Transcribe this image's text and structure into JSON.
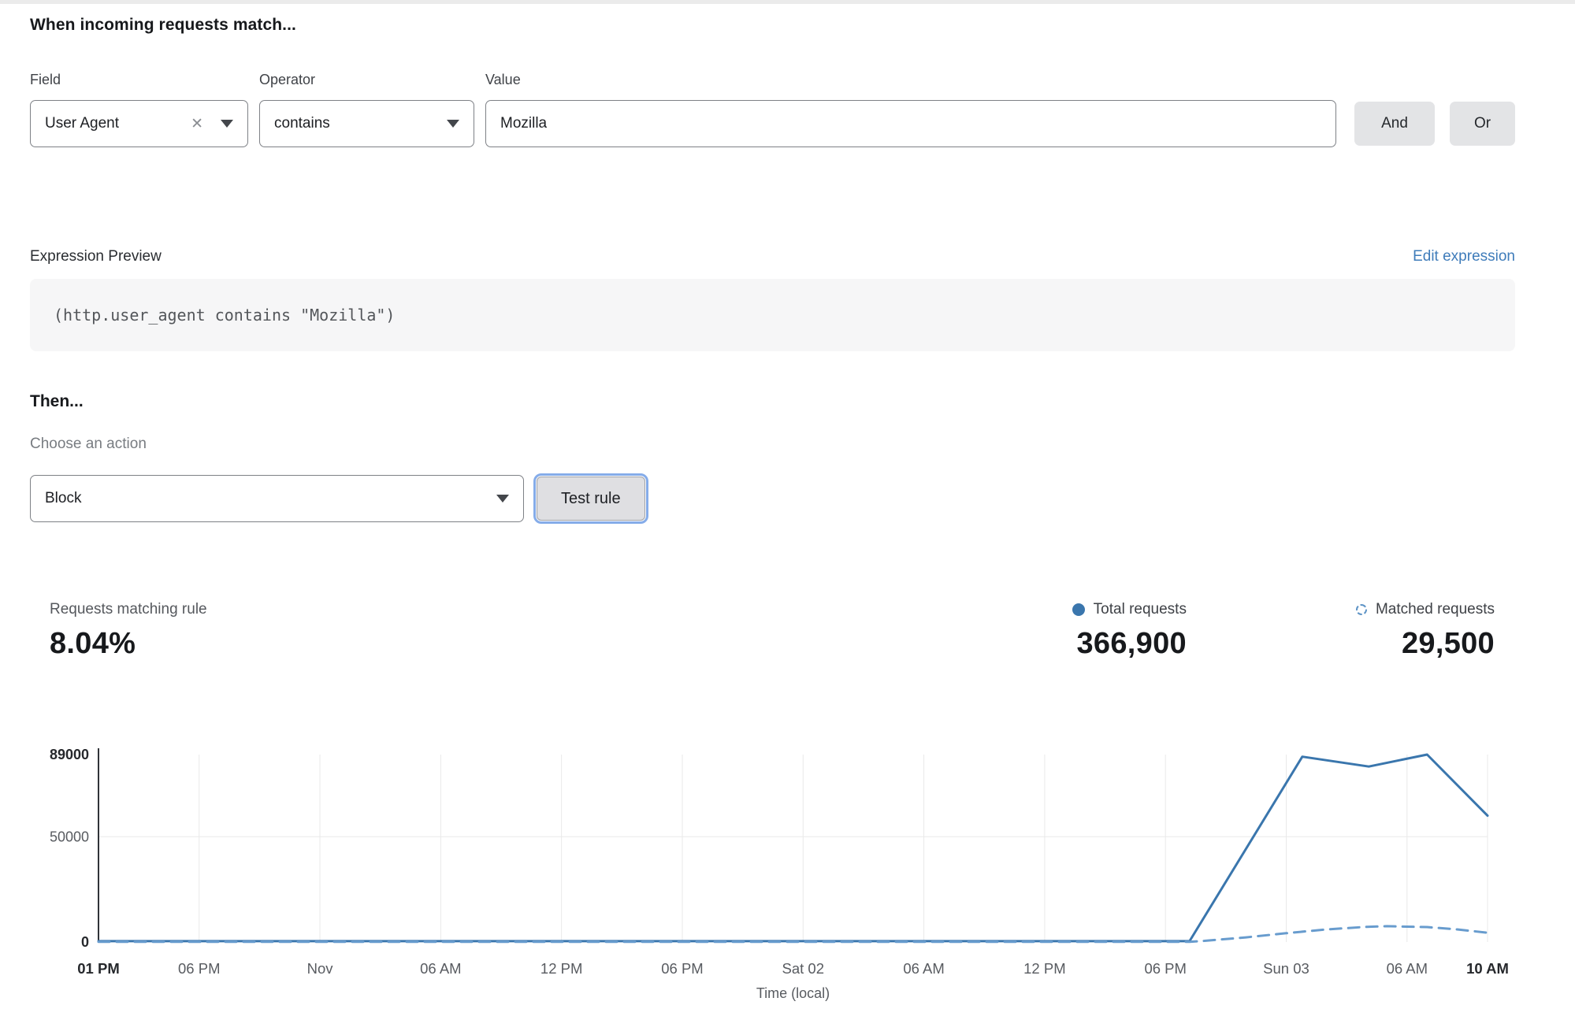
{
  "page": {
    "title": "When incoming requests match..."
  },
  "rule_builder": {
    "field": {
      "label": "Field",
      "selected": "User Agent"
    },
    "operator": {
      "label": "Operator",
      "selected": "contains"
    },
    "value": {
      "label": "Value",
      "value": "Mozilla"
    },
    "and_button": "And",
    "or_button": "Or"
  },
  "expression": {
    "label": "Expression Preview",
    "edit_link": "Edit expression",
    "code": "(http.user_agent contains \"Mozilla\")"
  },
  "action": {
    "title": "Then...",
    "label": "Choose an action",
    "selected": "Block",
    "test_button": "Test rule"
  },
  "stats": {
    "matching_rule": {
      "label": "Requests matching rule",
      "value": "8.04%"
    },
    "total_requests": {
      "label": "Total requests",
      "value": "366,900",
      "color": "#3a76ad"
    },
    "matched_requests": {
      "label": "Matched requests",
      "value": "29,500",
      "color": "#5e94c6"
    }
  },
  "chart_data": {
    "type": "line",
    "title": "",
    "xlabel": "Time (local)",
    "ylabel": "",
    "x_unit": "hours since Fri 01 PM",
    "xlim": [
      0,
      69
    ],
    "ylim": [
      0,
      89000
    ],
    "grid_vertical": true,
    "grid_horizontal_values": [
      50000
    ],
    "legend_position": "above-right",
    "colors": {
      "grid": "#e9e9e9",
      "axis": "#303338",
      "tick": "#585b60",
      "tick_bold": "#26282c"
    },
    "yticks": [
      {
        "value": 89000,
        "label": "89000",
        "bold": true
      },
      {
        "value": 50000,
        "label": "50000",
        "bold": false
      },
      {
        "value": 0,
        "label": "0",
        "bold": true
      }
    ],
    "xticks": [
      {
        "hour": 0,
        "label": "01 PM",
        "bold": true
      },
      {
        "hour": 5,
        "label": "06 PM",
        "bold": false
      },
      {
        "hour": 11,
        "label": "Nov",
        "bold": false
      },
      {
        "hour": 17,
        "label": "06 AM",
        "bold": false
      },
      {
        "hour": 23,
        "label": "12 PM",
        "bold": false
      },
      {
        "hour": 29,
        "label": "06 PM",
        "bold": false
      },
      {
        "hour": 35,
        "label": "Sat 02",
        "bold": false
      },
      {
        "hour": 41,
        "label": "06 AM",
        "bold": false
      },
      {
        "hour": 47,
        "label": "12 PM",
        "bold": false
      },
      {
        "hour": 53,
        "label": "06 PM",
        "bold": false
      },
      {
        "hour": 59,
        "label": "Sun 03",
        "bold": false
      },
      {
        "hour": 65,
        "label": "06 AM",
        "bold": false
      },
      {
        "hour": 69,
        "label": "10 AM",
        "bold": true
      }
    ],
    "series": [
      {
        "name": "Total requests",
        "style": "solid",
        "color": "#3a76ad",
        "points": [
          [
            0,
            400
          ],
          [
            6,
            400
          ],
          [
            12,
            400
          ],
          [
            18,
            400
          ],
          [
            24,
            400
          ],
          [
            30,
            400
          ],
          [
            36,
            400
          ],
          [
            42,
            400
          ],
          [
            48,
            400
          ],
          [
            54.2,
            400
          ],
          [
            59.8,
            88000
          ],
          [
            63.1,
            83300
          ],
          [
            66,
            89000
          ],
          [
            69,
            60000
          ]
        ]
      },
      {
        "name": "Matched requests",
        "style": "dashed",
        "color": "#689cce",
        "points": [
          [
            0,
            80
          ],
          [
            6,
            80
          ],
          [
            12,
            80
          ],
          [
            18,
            80
          ],
          [
            24,
            80
          ],
          [
            30,
            80
          ],
          [
            36,
            80
          ],
          [
            42,
            80
          ],
          [
            48,
            80
          ],
          [
            54.2,
            80
          ],
          [
            55,
            600
          ],
          [
            57,
            2200
          ],
          [
            59,
            4200
          ],
          [
            61,
            6000
          ],
          [
            63,
            7200
          ],
          [
            64,
            7500
          ],
          [
            65,
            7300
          ],
          [
            66,
            7100
          ],
          [
            67.5,
            6000
          ],
          [
            69,
            4400
          ]
        ]
      }
    ]
  }
}
